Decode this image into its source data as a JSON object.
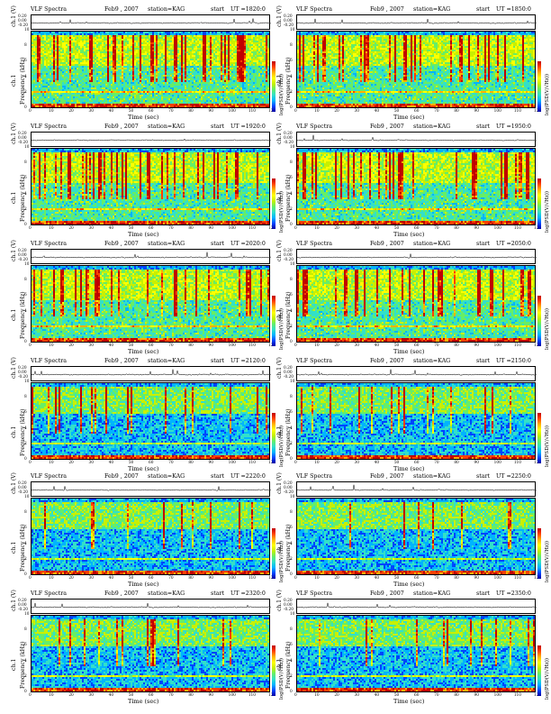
{
  "colors": {
    "background": "#ffffff",
    "colormap": [
      "#0000a0",
      "#0044ff",
      "#00b4ff",
      "#33e0c8",
      "#66ee66",
      "#c8f000",
      "#ffff00",
      "#ffb000",
      "#ff4000",
      "#c00000"
    ]
  },
  "chart_data": {
    "type": "heatmap",
    "panels": [
      {
        "title": "VLF Spectra",
        "date": "Feb9 , 2007",
        "station": "station=KAG",
        "start_label": "start",
        "ut": "UT =1820:0"
      },
      {
        "title": "VLF Spectra",
        "date": "Feb9 , 2007",
        "station": "station=KAG",
        "start_label": "start",
        "ut": "UT =1850:0"
      },
      {
        "title": "VLF Spectra",
        "date": "Feb9 , 2007",
        "station": "station=KAG",
        "start_label": "start",
        "ut": "UT =1920:0"
      },
      {
        "title": "VLF Spectra",
        "date": "Feb9 , 2007",
        "station": "station=KAG",
        "start_label": "start",
        "ut": "UT =1950:0"
      },
      {
        "title": "VLF Spectra",
        "date": "Feb9 , 2007",
        "station": "station=KAG",
        "start_label": "start",
        "ut": "UT =2020:0"
      },
      {
        "title": "VLF Spectra",
        "date": "Feb9 , 2007",
        "station": "station=KAG",
        "start_label": "start",
        "ut": "UT =2050:0"
      },
      {
        "title": "VLF Spectra",
        "date": "Feb9 , 2007",
        "station": "station=KAG",
        "start_label": "start",
        "ut": "UT =2120:0"
      },
      {
        "title": "VLF Spectra",
        "date": "Feb9 , 2007",
        "station": "station=KAG",
        "start_label": "start",
        "ut": "UT =2150:0"
      },
      {
        "title": "VLF Spectra",
        "date": "Feb9 , 2007",
        "station": "station=KAG",
        "start_label": "start",
        "ut": "UT =2220:0"
      },
      {
        "title": "VLF Spectra",
        "date": "Feb9 , 2007",
        "station": "station=KAG",
        "start_label": "start",
        "ut": "UT =2250:0"
      },
      {
        "title": "VLF Spectra",
        "date": "Feb9 , 2007",
        "station": "station=KAG",
        "start_label": "start",
        "ut": "UT =2320:0"
      },
      {
        "title": "VLF Spectra",
        "date": "Feb9 , 2007",
        "station": "station=KAG",
        "start_label": "start",
        "ut": "UT =2350:0"
      }
    ],
    "xlabel": "Time (sec)",
    "ylabel_line1": "ch.1",
    "ylabel_line2": "Frequency (kHz)",
    "ch_label": "ch.1 (V)",
    "colorbar_label": "log(PSD(V/√Hz))",
    "xlim": [
      0,
      120
    ],
    "ylim": [
      0,
      10
    ],
    "x_ticks": [
      "0",
      "10",
      "20",
      "30",
      "40",
      "50",
      "60",
      "70",
      "80",
      "90",
      "100",
      "110",
      "120"
    ],
    "y_ticks": [
      "0",
      "2",
      "4",
      "6",
      "8",
      "10"
    ],
    "ch_ticks": [
      "0.20",
      "0.00",
      "-0.20"
    ]
  }
}
